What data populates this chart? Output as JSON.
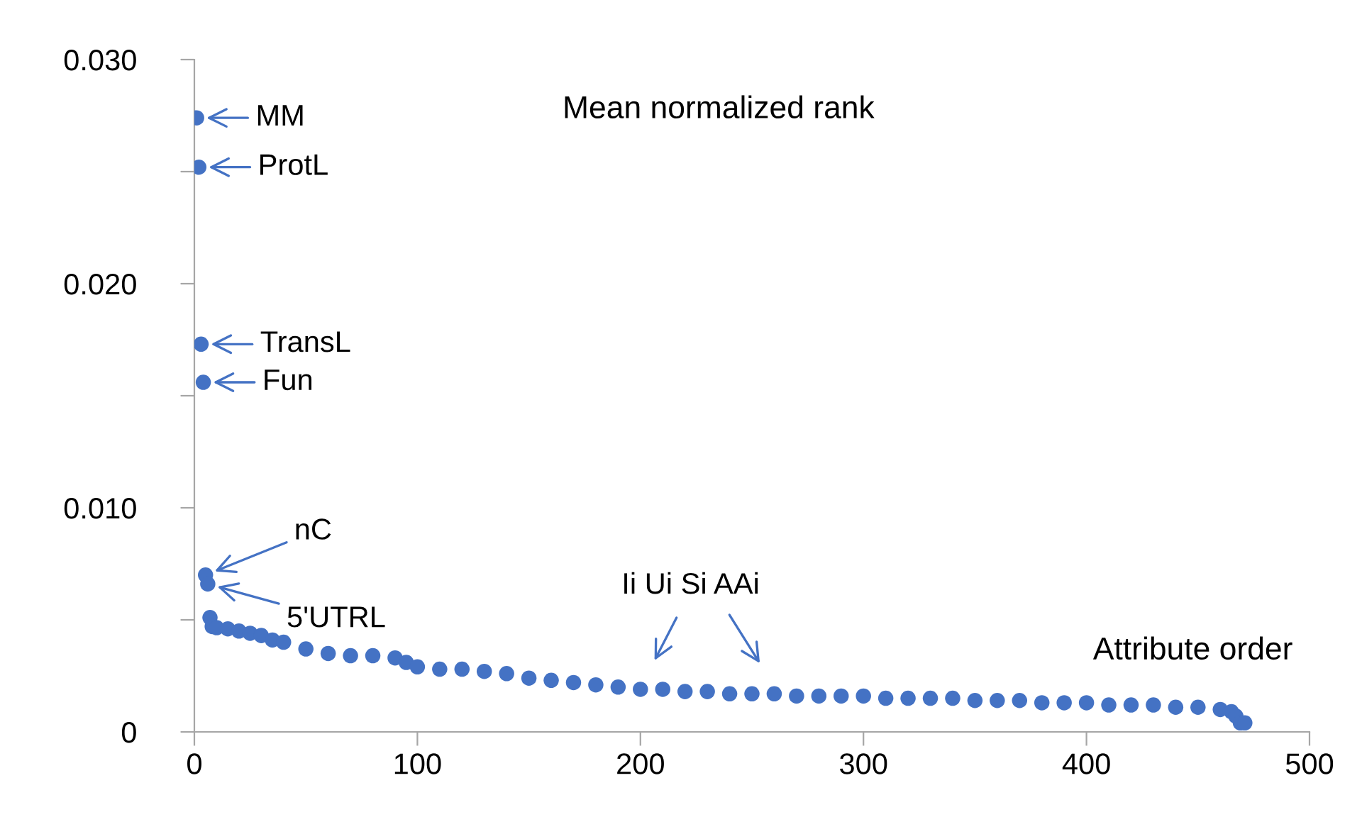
{
  "chart_data": {
    "type": "scatter",
    "title": "Mean normalized rank",
    "xlabel": "Attribute order",
    "x": [
      1,
      2,
      3,
      4,
      5,
      6,
      7,
      8,
      10,
      15,
      20,
      25,
      30,
      35,
      40,
      50,
      60,
      70,
      80,
      90,
      95,
      100,
      110,
      120,
      130,
      140,
      150,
      160,
      170,
      180,
      190,
      200,
      210,
      220,
      230,
      240,
      250,
      260,
      270,
      280,
      290,
      300,
      310,
      320,
      330,
      340,
      350,
      360,
      370,
      380,
      390,
      400,
      410,
      420,
      430,
      440,
      450,
      460,
      465,
      467,
      469,
      471
    ],
    "values": [
      0.0274,
      0.0252,
      0.0173,
      0.0156,
      0.007,
      0.0066,
      0.0051,
      0.0047,
      0.00465,
      0.0046,
      0.0045,
      0.0044,
      0.0043,
      0.0041,
      0.004,
      0.0037,
      0.0035,
      0.0034,
      0.0034,
      0.0033,
      0.0031,
      0.0029,
      0.0028,
      0.0028,
      0.0027,
      0.0026,
      0.0024,
      0.0023,
      0.0022,
      0.0021,
      0.002,
      0.0019,
      0.0019,
      0.0018,
      0.0018,
      0.0017,
      0.0017,
      0.0017,
      0.0016,
      0.0016,
      0.0016,
      0.0016,
      0.0015,
      0.0015,
      0.0015,
      0.0015,
      0.0014,
      0.0014,
      0.0014,
      0.0013,
      0.0013,
      0.0013,
      0.0012,
      0.0012,
      0.0012,
      0.0011,
      0.0011,
      0.001,
      0.0009,
      0.0007,
      0.0004,
      0.0004
    ],
    "color": "#4472c4",
    "marker": "circle",
    "xlim": [
      0,
      500
    ],
    "xticks": [
      0,
      100,
      200,
      300,
      400,
      500
    ],
    "ylim": [
      0,
      0.03
    ],
    "yticks": [
      {
        "value": 0,
        "label": "0"
      },
      {
        "value": 0.005,
        "label": null
      },
      {
        "value": 0.01,
        "label": "0.010"
      },
      {
        "value": 0.015,
        "label": null
      },
      {
        "value": 0.02,
        "label": "0.020"
      },
      {
        "value": 0.025,
        "label": null
      },
      {
        "value": 0.03,
        "label": "0.030"
      }
    ],
    "annotations": [
      {
        "text": "MM",
        "x": 1,
        "y": 0.0274
      },
      {
        "text": "ProtL",
        "x": 2,
        "y": 0.0252
      },
      {
        "text": "TransL",
        "x": 3,
        "y": 0.0173
      },
      {
        "text": "Fun",
        "x": 4,
        "y": 0.0156
      },
      {
        "text": "nC",
        "x": 5,
        "y": 0.007
      },
      {
        "text": "5'UTRL",
        "x": 6,
        "y": 0.0066
      },
      "Ii Ui Si AAi"
    ],
    "grid": false,
    "legend": false
  }
}
